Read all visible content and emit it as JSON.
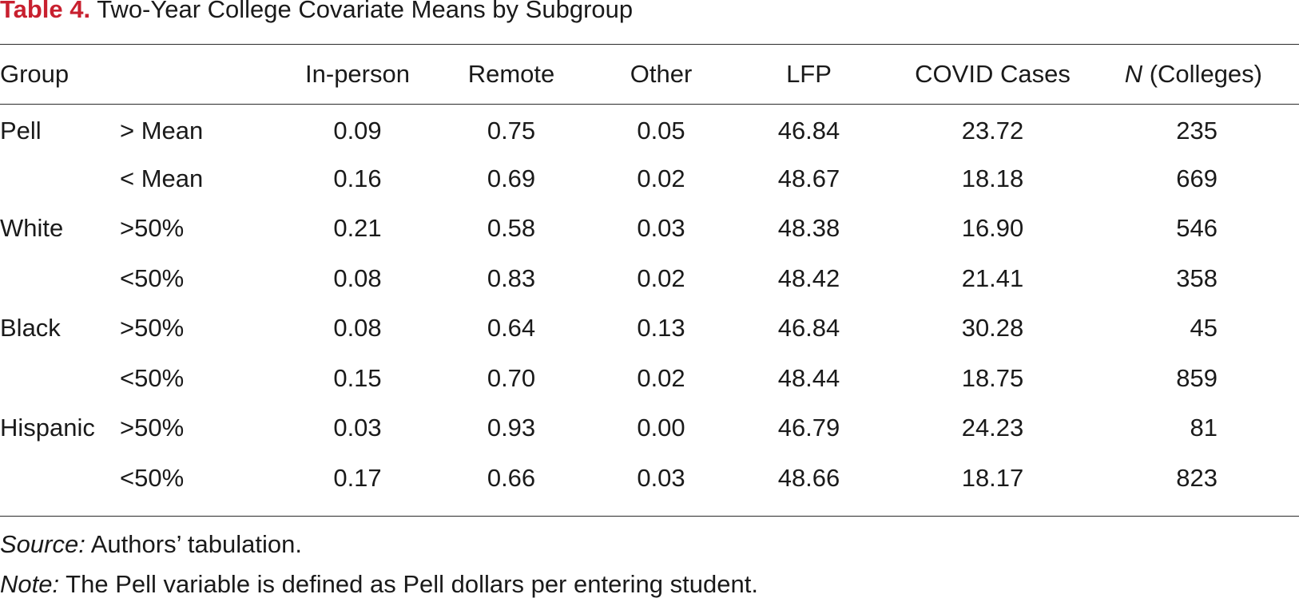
{
  "title": {
    "label": "Table 4.",
    "text": "Two-Year College Covariate Means by Subgroup"
  },
  "table": {
    "headers": {
      "group": "Group",
      "in_person": "In-person",
      "remote": "Remote",
      "other": "Other",
      "lfp": "LFP",
      "covid_cases": "COVID Cases",
      "n_italic": "N",
      "n_rest": " (Colleges)"
    },
    "rows": [
      {
        "group": "Pell",
        "sub": "> Mean",
        "in_person": "0.09",
        "remote": "0.75",
        "other": "0.05",
        "lfp": "46.84",
        "covid": "23.72",
        "n": "235"
      },
      {
        "group": "",
        "sub": "< Mean",
        "in_person": "0.16",
        "remote": "0.69",
        "other": "0.02",
        "lfp": "48.67",
        "covid": "18.18",
        "n": "669"
      },
      {
        "group": "White",
        "sub": ">50%",
        "in_person": "0.21",
        "remote": "0.58",
        "other": "0.03",
        "lfp": "48.38",
        "covid": "16.90",
        "n": "546"
      },
      {
        "group": "",
        "sub": "<50%",
        "in_person": "0.08",
        "remote": "0.83",
        "other": "0.02",
        "lfp": "48.42",
        "covid": "21.41",
        "n": "358"
      },
      {
        "group": "Black",
        "sub": ">50%",
        "in_person": "0.08",
        "remote": "0.64",
        "other": "0.13",
        "lfp": "46.84",
        "covid": "30.28",
        "n": "45"
      },
      {
        "group": "",
        "sub": "<50%",
        "in_person": "0.15",
        "remote": "0.70",
        "other": "0.02",
        "lfp": "48.44",
        "covid": "18.75",
        "n": "859"
      },
      {
        "group": "Hispanic",
        "sub": ">50%",
        "in_person": "0.03",
        "remote": "0.93",
        "other": "0.00",
        "lfp": "46.79",
        "covid": "24.23",
        "n": "81"
      },
      {
        "group": "",
        "sub": "<50%",
        "in_person": "0.17",
        "remote": "0.66",
        "other": "0.03",
        "lfp": "48.66",
        "covid": "18.17",
        "n": "823"
      }
    ]
  },
  "footnotes": {
    "source_label": "Source:",
    "source_text": " Authors’ tabulation.",
    "note_label": "Note:",
    "note_text": " The Pell variable is defined as Pell dollars per entering student."
  }
}
